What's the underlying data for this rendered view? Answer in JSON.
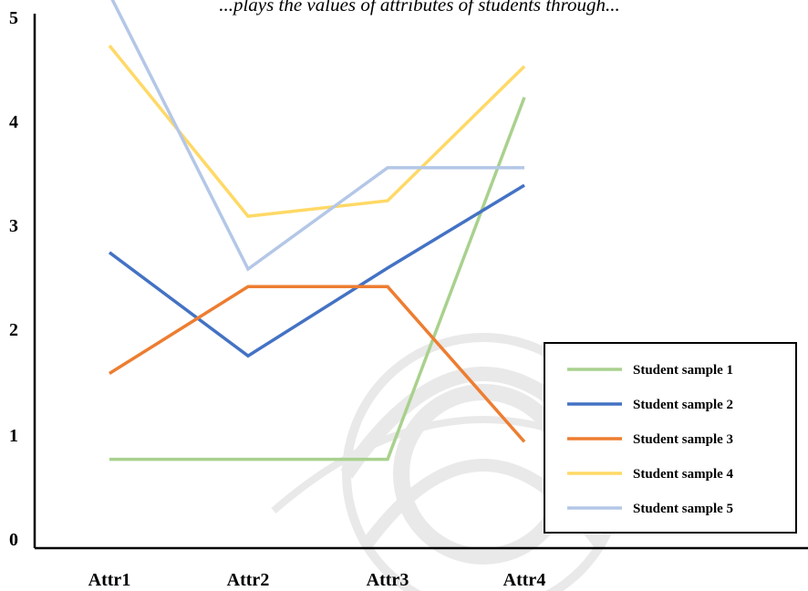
{
  "chart_data": {
    "type": "line",
    "title": "...plays the values of attributes of students through...",
    "categories": [
      "Attr1",
      "Attr2",
      "Attr3",
      "Attr4"
    ],
    "yticks": [
      "0",
      "1",
      "2",
      "3",
      "4",
      "5"
    ],
    "ylim": [
      0,
      5
    ],
    "grid": false,
    "legend_position": "bottom-right",
    "series": [
      {
        "name": "Student sample  1",
        "color": "#a9d18e",
        "values": [
          0.4,
          0.4,
          0.4,
          3.9
        ]
      },
      {
        "name": "Student  sample 2",
        "color": "#4472c4",
        "values": [
          2.4,
          1.4,
          2.25,
          3.05
        ]
      },
      {
        "name": "Student  sample 3",
        "color": "#ed7d31",
        "values": [
          1.23,
          2.07,
          2.07,
          0.57
        ]
      },
      {
        "name": "Student  sample 4",
        "color": "#ffd966",
        "values": [
          4.4,
          2.75,
          2.9,
          4.2
        ]
      },
      {
        "name": "Student  sample 5",
        "color": "#b4c7e7",
        "values": [
          4.9,
          2.24,
          3.22,
          3.22
        ]
      }
    ]
  }
}
